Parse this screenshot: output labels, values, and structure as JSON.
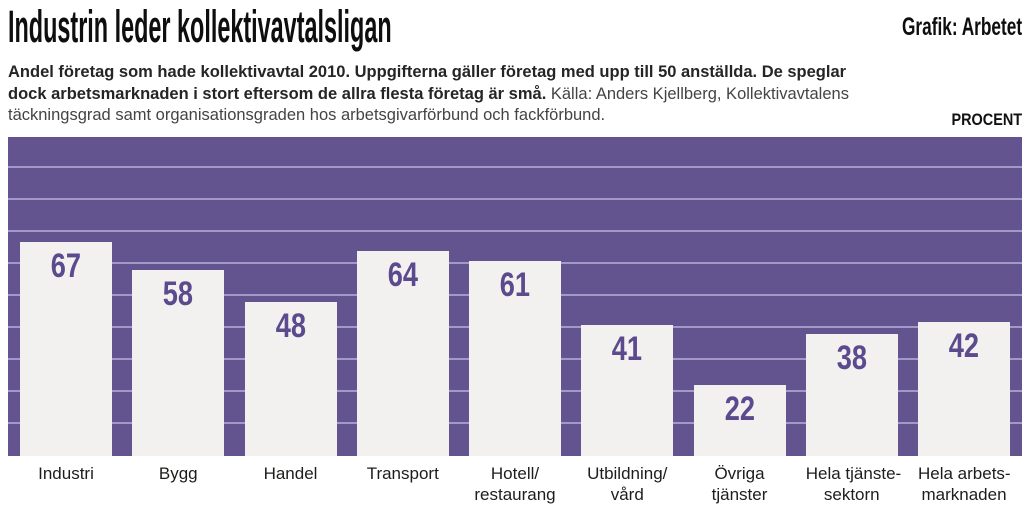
{
  "header": {
    "title": "Industrin leder kollektivavtalsligan",
    "credit": "Grafik: Arbetet"
  },
  "description": {
    "bold_text": "Andel företag som hade kollektivavtal 2010. Uppgifterna gäller företag med upp till 50 anställda. De speglar dock arbetsmarknaden i stort eftersom de allra flesta företag är små.",
    "source_text": "Källa: Anders Kjellberg, Kollektivavtalens täckningsgrad samt organisationsgraden hos arbetsgivarförbund och fackförbund."
  },
  "chart_data": {
    "type": "bar",
    "title": "Industrin leder kollektivavtalsligan",
    "unit_label": "PROCENT",
    "categories": [
      "Industri",
      "Bygg",
      "Handel",
      "Transport",
      "Hotell/\nrestaurang",
      "Utbildning/\nvård",
      "Övriga\ntjänster",
      "Hela tjänste-\nsektorn",
      "Hela arbets-\nmarknaden"
    ],
    "values": [
      67,
      58,
      48,
      64,
      61,
      41,
      22,
      38,
      42
    ],
    "xlabel": "",
    "ylabel": "PROCENT",
    "ylim": [
      0,
      100
    ],
    "grid": true,
    "grid_step": 10,
    "legend": "none",
    "colors": {
      "plot_background": "#63548f",
      "gridline": "#a199c7",
      "bar_fill": "#f2f1ef",
      "value_text": "#5b4a8d",
      "label_text": "#1d1d1b",
      "title_text": "#0e0e0e"
    }
  }
}
